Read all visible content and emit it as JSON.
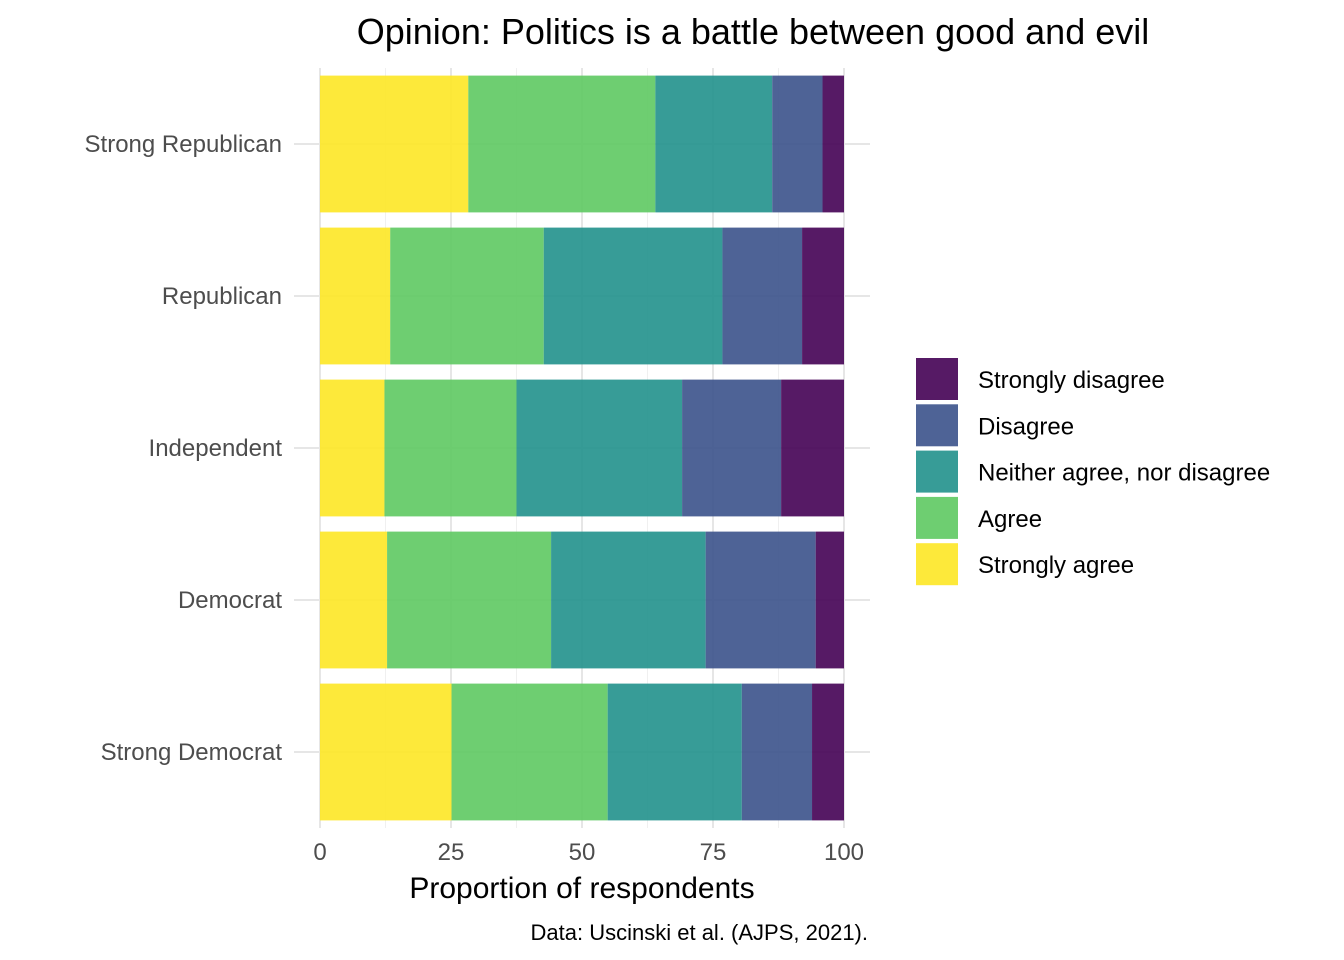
{
  "chart_data": {
    "type": "bar",
    "orientation": "horizontal",
    "stacked": true,
    "title": "Opinion: Politics is a battle between good and evil",
    "xlabel": "Proportion of respondents",
    "ylabel": "",
    "caption": "Data: Uscinski et al. (AJPS, 2021).",
    "xlim": [
      0,
      100
    ],
    "xticks": [
      "0",
      "25",
      "50",
      "75",
      "100"
    ],
    "categories": [
      "Strong Republican",
      "Republican",
      "Independent",
      "Democrat",
      "Strong Democrat"
    ],
    "series": [
      {
        "name": "Strongly agree",
        "color": "#FDE725",
        "values": [
          28.3,
          13.4,
          12.3,
          12.8,
          25.1
        ]
      },
      {
        "name": "Agree",
        "color": "#5EC962",
        "values": [
          35.7,
          29.3,
          25.2,
          31.3,
          29.8
        ]
      },
      {
        "name": "Neither agree, nor disagree",
        "color": "#21918C",
        "values": [
          22.3,
          34.1,
          31.6,
          29.5,
          25.6
        ]
      },
      {
        "name": "Disagree",
        "color": "#3B528B",
        "values": [
          9.6,
          15.2,
          18.9,
          21.0,
          13.4
        ]
      },
      {
        "name": "Strongly disagree",
        "color": "#440154",
        "values": [
          4.1,
          8.0,
          12.0,
          5.4,
          6.1
        ]
      }
    ],
    "legend": {
      "position": "right",
      "order": [
        "Strongly disagree",
        "Disagree",
        "Neither agree, nor disagree",
        "Agree",
        "Strongly agree"
      ]
    },
    "grid": true
  }
}
